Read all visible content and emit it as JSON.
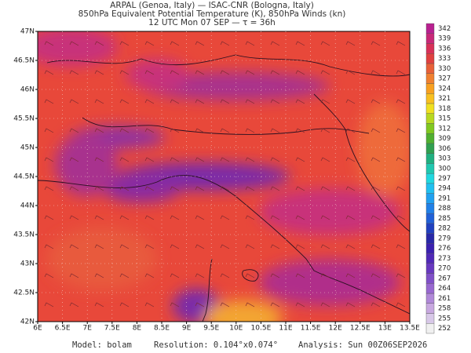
{
  "header": {
    "lines": [
      "ARPAL (Genoa, Italy)  —  ISAC-CNR (Bologna, Italy)",
      "850hPa Equivalent Potential Temperature (K), 850hPa Winds (kn)",
      "12 UTC Mon 07 SEP  —  τ = 36h"
    ]
  },
  "map": {
    "lon_ticks": [
      "6E",
      "6.5E",
      "7E",
      "7.5E",
      "8E",
      "8.5E",
      "9E",
      "9.5E",
      "10E",
      "10.5E",
      "11E",
      "11.5E",
      "12E",
      "12.5E",
      "13E",
      "13.5E"
    ],
    "lat_ticks": [
      "42N",
      "42.5N",
      "43N",
      "43.5N",
      "44N",
      "44.5N",
      "45N",
      "45.5N",
      "46N",
      "46.5N",
      "47N"
    ]
  },
  "colorbar": {
    "levels": [
      252,
      255,
      258,
      261,
      264,
      267,
      270,
      273,
      276,
      279,
      282,
      285,
      288,
      291,
      294,
      297,
      300,
      303,
      306,
      309,
      312,
      315,
      318,
      321,
      324,
      327,
      330,
      333,
      336,
      339,
      342
    ],
    "colors": [
      "#f0f0f0",
      "#d8c8e8",
      "#c8a8e0",
      "#b088d8",
      "#9868d0",
      "#8050c8",
      "#6838c0",
      "#5028b8",
      "#3a20b0",
      "#2828a8",
      "#2040c0",
      "#2060d8",
      "#2080e8",
      "#20a0f0",
      "#20c0f0",
      "#20d8e0",
      "#20c8b0",
      "#20b080",
      "#30a050",
      "#50b030",
      "#80c820",
      "#b8d820",
      "#f0e020",
      "#f8c020",
      "#f8a020",
      "#f08030",
      "#e86038",
      "#e04040",
      "#d83058",
      "#c82878",
      "#b82090"
    ]
  },
  "footer": {
    "model": "Model: bolam",
    "resolution": "Resolution: 0.104°x0.074°",
    "analysis": "Analysis: Sun 00Z06SEP2026"
  }
}
